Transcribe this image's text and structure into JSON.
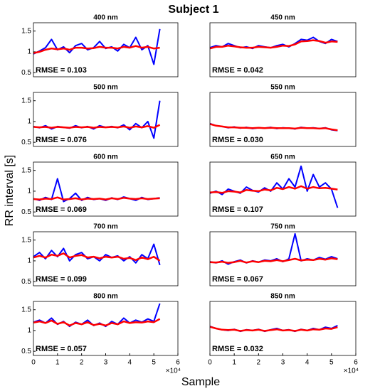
{
  "title": "Subject 1",
  "ylabel": "RR interval [s]",
  "xlabel": "Sample",
  "chart_data": [
    {
      "type": "line",
      "title": "400  nm",
      "annotation": "RMSE = 0.103",
      "x": [
        0,
        2500,
        5000,
        7500,
        10000,
        12500,
        15000,
        17500,
        20000,
        22500,
        25000,
        27500,
        30000,
        32500,
        35000,
        37500,
        40000,
        42500,
        45000,
        47500,
        50000,
        52500
      ],
      "xlim": [
        0,
        60000
      ],
      "ylim": [
        0.4,
        1.7
      ],
      "yticks": [
        0.5,
        1,
        1.5
      ],
      "series": [
        {
          "color": "#0000ff",
          "values": [
            0.95,
            1.02,
            1.1,
            1.3,
            1.05,
            1.12,
            0.98,
            1.15,
            1.2,
            1.05,
            1.1,
            1.25,
            1.08,
            1.12,
            1.02,
            1.18,
            1.1,
            1.35,
            1.05,
            1.15,
            0.7,
            1.55
          ]
        },
        {
          "color": "#ff0000",
          "values": [
            0.97,
            1.0,
            1.05,
            1.08,
            1.06,
            1.08,
            1.05,
            1.1,
            1.1,
            1.08,
            1.09,
            1.12,
            1.1,
            1.1,
            1.08,
            1.12,
            1.1,
            1.14,
            1.1,
            1.12,
            1.08,
            1.1
          ]
        }
      ]
    },
    {
      "type": "line",
      "title": "450  nm",
      "annotation": "RMSE = 0.042",
      "x": [
        0,
        2500,
        5000,
        7500,
        10000,
        12500,
        15000,
        17500,
        20000,
        22500,
        25000,
        27500,
        30000,
        32500,
        35000,
        37500,
        40000,
        42500,
        45000,
        47500,
        50000,
        52500
      ],
      "xlim": [
        0,
        60000
      ],
      "ylim": [
        0.4,
        1.7
      ],
      "series": [
        {
          "color": "#0000ff",
          "values": [
            1.1,
            1.15,
            1.12,
            1.2,
            1.15,
            1.1,
            1.12,
            1.08,
            1.15,
            1.12,
            1.1,
            1.15,
            1.18,
            1.12,
            1.2,
            1.3,
            1.28,
            1.35,
            1.25,
            1.2,
            1.3,
            1.25
          ]
        },
        {
          "color": "#ff0000",
          "values": [
            1.08,
            1.12,
            1.12,
            1.15,
            1.13,
            1.11,
            1.1,
            1.1,
            1.12,
            1.11,
            1.1,
            1.12,
            1.15,
            1.14,
            1.18,
            1.25,
            1.26,
            1.28,
            1.26,
            1.22,
            1.25,
            1.24
          ]
        }
      ]
    },
    {
      "type": "line",
      "title": "500  nm",
      "annotation": "RMSE = 0.076",
      "x": [
        0,
        2500,
        5000,
        7500,
        10000,
        12500,
        15000,
        17500,
        20000,
        22500,
        25000,
        27500,
        30000,
        32500,
        35000,
        37500,
        40000,
        42500,
        45000,
        47500,
        50000,
        52500
      ],
      "xlim": [
        0,
        60000
      ],
      "ylim": [
        0.4,
        1.7
      ],
      "yticks": [
        0.5,
        1,
        1.5
      ],
      "series": [
        {
          "color": "#0000ff",
          "values": [
            0.88,
            0.85,
            0.9,
            0.82,
            0.88,
            0.86,
            0.84,
            0.9,
            0.85,
            0.88,
            0.82,
            0.9,
            0.86,
            0.88,
            0.85,
            0.92,
            0.8,
            0.95,
            0.85,
            1.0,
            0.6,
            1.5
          ]
        },
        {
          "color": "#ff0000",
          "values": [
            0.87,
            0.86,
            0.87,
            0.85,
            0.87,
            0.86,
            0.85,
            0.87,
            0.86,
            0.87,
            0.85,
            0.87,
            0.86,
            0.87,
            0.86,
            0.88,
            0.85,
            0.88,
            0.86,
            0.89,
            0.85,
            0.92
          ]
        }
      ]
    },
    {
      "type": "line",
      "title": "550  nm",
      "annotation": "RMSE = 0.030",
      "x": [
        0,
        2500,
        5000,
        7500,
        10000,
        12500,
        15000,
        17500,
        20000,
        22500,
        25000,
        27500,
        30000,
        32500,
        35000,
        37500,
        40000,
        42500,
        45000,
        47500,
        50000,
        52500
      ],
      "xlim": [
        0,
        60000
      ],
      "ylim": [
        0.4,
        1.7
      ],
      "series": [
        {
          "color": "#0000ff",
          "values": [
            0.95,
            0.9,
            0.88,
            0.85,
            0.87,
            0.84,
            0.86,
            0.83,
            0.85,
            0.84,
            0.86,
            0.83,
            0.85,
            0.84,
            0.82,
            0.86,
            0.84,
            0.85,
            0.83,
            0.85,
            0.8,
            0.78
          ]
        },
        {
          "color": "#ff0000",
          "values": [
            0.94,
            0.9,
            0.88,
            0.86,
            0.86,
            0.85,
            0.85,
            0.84,
            0.85,
            0.84,
            0.85,
            0.84,
            0.84,
            0.84,
            0.83,
            0.85,
            0.84,
            0.84,
            0.83,
            0.84,
            0.81,
            0.79
          ]
        }
      ]
    },
    {
      "type": "line",
      "title": "600  nm",
      "annotation": "RMSE = 0.069",
      "x": [
        0,
        2500,
        5000,
        7500,
        10000,
        12500,
        15000,
        17500,
        20000,
        22500,
        25000,
        27500,
        30000,
        32500,
        35000,
        37500,
        40000,
        42500,
        45000,
        47500,
        50000,
        52500
      ],
      "xlim": [
        0,
        60000
      ],
      "ylim": [
        0.4,
        1.7
      ],
      "yticks": [
        0.5,
        1,
        1.5
      ],
      "series": [
        {
          "color": "#0000ff",
          "values": [
            0.82,
            0.78,
            0.85,
            0.8,
            1.3,
            0.75,
            0.82,
            0.95,
            0.78,
            0.85,
            0.8,
            0.82,
            0.78,
            0.84,
            0.8,
            0.86,
            0.82,
            0.78,
            0.85,
            0.8,
            0.82,
            0.84
          ]
        },
        {
          "color": "#ff0000",
          "values": [
            0.81,
            0.8,
            0.82,
            0.81,
            0.85,
            0.8,
            0.81,
            0.83,
            0.8,
            0.82,
            0.81,
            0.82,
            0.8,
            0.83,
            0.81,
            0.84,
            0.82,
            0.81,
            0.83,
            0.81,
            0.82,
            0.83
          ]
        }
      ]
    },
    {
      "type": "line",
      "title": "650  nm",
      "annotation": "RMSE = 0.107",
      "x": [
        0,
        2500,
        5000,
        7500,
        10000,
        12500,
        15000,
        17500,
        20000,
        22500,
        25000,
        27500,
        30000,
        32500,
        35000,
        37500,
        40000,
        42500,
        45000,
        47500,
        50000,
        52500
      ],
      "xlim": [
        0,
        60000
      ],
      "ylim": [
        0.4,
        1.7
      ],
      "series": [
        {
          "color": "#0000ff",
          "values": [
            0.95,
            1.0,
            0.92,
            1.05,
            1.0,
            0.95,
            1.1,
            1.02,
            0.98,
            1.08,
            1.0,
            1.2,
            1.05,
            1.3,
            1.1,
            1.6,
            1.0,
            1.4,
            1.1,
            1.2,
            1.05,
            0.6
          ]
        },
        {
          "color": "#ff0000",
          "values": [
            0.97,
            0.98,
            0.96,
            1.0,
            0.99,
            0.97,
            1.03,
            1.01,
            1.0,
            1.04,
            1.02,
            1.08,
            1.05,
            1.1,
            1.06,
            1.12,
            1.06,
            1.1,
            1.07,
            1.08,
            1.06,
            1.04
          ]
        }
      ]
    },
    {
      "type": "line",
      "title": "700  nm",
      "annotation": "RMSE = 0.099",
      "x": [
        0,
        2500,
        5000,
        7500,
        10000,
        12500,
        15000,
        17500,
        20000,
        22500,
        25000,
        27500,
        30000,
        32500,
        35000,
        37500,
        40000,
        42500,
        45000,
        47500,
        50000,
        52500
      ],
      "xlim": [
        0,
        60000
      ],
      "ylim": [
        0.4,
        1.7
      ],
      "yticks": [
        0.5,
        1,
        1.5
      ],
      "series": [
        {
          "color": "#0000ff",
          "values": [
            1.1,
            1.2,
            1.05,
            1.25,
            1.1,
            1.3,
            1.0,
            1.15,
            1.2,
            1.05,
            1.1,
            1.0,
            1.15,
            1.08,
            1.12,
            1.0,
            1.1,
            0.95,
            1.15,
            1.05,
            1.4,
            0.9
          ]
        },
        {
          "color": "#ff0000",
          "values": [
            1.08,
            1.12,
            1.08,
            1.15,
            1.12,
            1.18,
            1.08,
            1.12,
            1.14,
            1.08,
            1.1,
            1.06,
            1.1,
            1.08,
            1.1,
            1.05,
            1.07,
            1.02,
            1.08,
            1.04,
            1.1,
            1.0
          ]
        }
      ]
    },
    {
      "type": "line",
      "title": "750  nm",
      "annotation": "RMSE = 0.067",
      "x": [
        0,
        2500,
        5000,
        7500,
        10000,
        12500,
        15000,
        17500,
        20000,
        22500,
        25000,
        27500,
        30000,
        32500,
        35000,
        37500,
        40000,
        42500,
        45000,
        47500,
        50000,
        52500
      ],
      "xlim": [
        0,
        60000
      ],
      "ylim": [
        0.4,
        1.7
      ],
      "series": [
        {
          "color": "#0000ff",
          "values": [
            0.98,
            0.95,
            1.0,
            0.92,
            0.98,
            1.02,
            0.95,
            1.0,
            0.97,
            1.02,
            1.0,
            1.05,
            0.98,
            1.05,
            1.65,
            1.0,
            1.05,
            1.02,
            1.08,
            1.04,
            1.1,
            1.05
          ]
        },
        {
          "color": "#ff0000",
          "values": [
            0.97,
            0.96,
            0.98,
            0.95,
            0.97,
            1.0,
            0.96,
            0.99,
            0.97,
            1.0,
            0.99,
            1.02,
            0.99,
            1.02,
            1.05,
            1.01,
            1.03,
            1.02,
            1.05,
            1.03,
            1.06,
            1.04
          ]
        }
      ]
    },
    {
      "type": "line",
      "title": "800  nm",
      "annotation": "RMSE = 0.057",
      "x": [
        0,
        2500,
        5000,
        7500,
        10000,
        12500,
        15000,
        17500,
        20000,
        22500,
        25000,
        27500,
        30000,
        32500,
        35000,
        37500,
        40000,
        42500,
        45000,
        47500,
        50000,
        52500
      ],
      "xlim": [
        0,
        60000
      ],
      "ylim": [
        0.4,
        1.7
      ],
      "yticks": [
        0.5,
        1,
        1.5
      ],
      "xticks": [
        0,
        {
          "value": 10000,
          "label": "1"
        },
        {
          "value": 20000,
          "label": "2"
        },
        {
          "value": 30000,
          "label": "3"
        },
        {
          "value": 40000,
          "label": "4"
        },
        {
          "value": 50000,
          "label": "5"
        },
        {
          "value": 60000,
          "label": "6"
        }
      ],
      "xtick_exponent": "×10⁴",
      "series": [
        {
          "color": "#0000ff",
          "values": [
            1.2,
            1.25,
            1.18,
            1.3,
            1.15,
            1.22,
            1.1,
            1.2,
            1.15,
            1.25,
            1.12,
            1.18,
            1.1,
            1.22,
            1.15,
            1.3,
            1.18,
            1.25,
            1.2,
            1.28,
            1.22,
            1.65
          ]
        },
        {
          "color": "#ff0000",
          "values": [
            1.19,
            1.22,
            1.18,
            1.24,
            1.16,
            1.2,
            1.12,
            1.18,
            1.15,
            1.2,
            1.13,
            1.16,
            1.12,
            1.18,
            1.15,
            1.22,
            1.18,
            1.2,
            1.19,
            1.22,
            1.2,
            1.28
          ]
        }
      ]
    },
    {
      "type": "line",
      "title": "850  nm",
      "annotation": "RMSE = 0.032",
      "x": [
        0,
        2500,
        5000,
        7500,
        10000,
        12500,
        15000,
        17500,
        20000,
        22500,
        25000,
        27500,
        30000,
        32500,
        35000,
        37500,
        40000,
        42500,
        45000,
        47500,
        50000,
        52500
      ],
      "xlim": [
        0,
        60000
      ],
      "ylim": [
        0.4,
        1.7
      ],
      "xticks": [
        0,
        {
          "value": 10000,
          "label": "1"
        },
        {
          "value": 20000,
          "label": "2"
        },
        {
          "value": 30000,
          "label": "3"
        },
        {
          "value": 40000,
          "label": "4"
        },
        {
          "value": 50000,
          "label": "5"
        },
        {
          "value": 60000,
          "label": "6"
        }
      ],
      "xtick_exponent": "×10⁴",
      "series": [
        {
          "color": "#0000ff",
          "values": [
            1.1,
            1.05,
            1.02,
            1.0,
            1.03,
            0.98,
            1.02,
            1.0,
            1.03,
            0.98,
            1.02,
            1.05,
            1.0,
            1.02,
            0.98,
            1.03,
            1.0,
            1.05,
            1.02,
            1.08,
            1.05,
            1.12
          ]
        },
        {
          "color": "#ff0000",
          "values": [
            1.09,
            1.05,
            1.02,
            1.01,
            1.02,
            0.99,
            1.01,
            1.0,
            1.02,
            0.99,
            1.01,
            1.03,
            1.0,
            1.01,
            0.99,
            1.02,
            1.0,
            1.03,
            1.02,
            1.05,
            1.04,
            1.08
          ]
        }
      ]
    }
  ]
}
